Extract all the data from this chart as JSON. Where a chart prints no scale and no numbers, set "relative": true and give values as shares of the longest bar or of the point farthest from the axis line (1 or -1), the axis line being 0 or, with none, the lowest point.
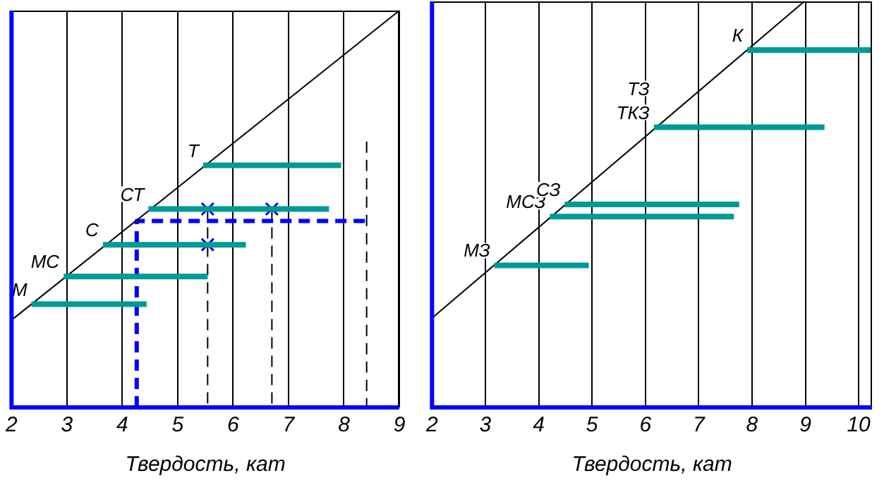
{
  "chart_data": [
    {
      "type": "line",
      "xlabel": "Твердость, кат",
      "xlim": [
        2,
        9
      ],
      "xticks": [
        2,
        3,
        4,
        5,
        6,
        7,
        8,
        9
      ],
      "relative": true,
      "grid": "x",
      "series": [
        {
          "name": "Т",
          "color": "#009999",
          "x": [
            5.46,
            7.95
          ],
          "values": [
            0.61,
            0.61
          ],
          "marker": "none",
          "line_style": "solid"
        },
        {
          "name": "СТ",
          "color": "#009999",
          "x": [
            4.47,
            7.73
          ],
          "values": [
            0.5,
            0.5
          ],
          "marker": "none",
          "line_style": "solid"
        },
        {
          "name": "С",
          "color": "#009999",
          "x": [
            3.65,
            6.23
          ],
          "values": [
            0.41,
            0.41
          ],
          "marker": "none",
          "line_style": "solid"
        },
        {
          "name": "МС",
          "color": "#009999",
          "x": [
            2.94,
            5.54
          ],
          "values": [
            0.33,
            0.33
          ],
          "marker": "none",
          "line_style": "solid"
        },
        {
          "name": "М",
          "color": "#009999",
          "x": [
            2.36,
            4.44
          ],
          "values": [
            0.26,
            0.26
          ],
          "marker": "none",
          "line_style": "solid"
        },
        {
          "color": "#000000",
          "x": [
            2,
            9
          ],
          "values": [
            0.22,
            1
          ],
          "marker": "none",
          "line_style": "solid"
        },
        {
          "color": "#0000ff",
          "x": [
            4.26,
            4.26,
            8.41
          ],
          "values": [
            0,
            0.47,
            0.47
          ],
          "marker": "none",
          "line_style": "dashed"
        },
        {
          "color": "#000000",
          "x": [
            5.54,
            5.54
          ],
          "values": [
            0.5,
            0
          ],
          "marker": "none",
          "line_style": "dashed"
        },
        {
          "color": "#000000",
          "x": [
            6.7,
            6.7
          ],
          "values": [
            0.5,
            0
          ],
          "marker": "none",
          "line_style": "dashed"
        },
        {
          "color": "#000000",
          "x": [
            8.41,
            8.41
          ],
          "values": [
            0.67,
            0
          ],
          "marker": "none",
          "line_style": "dashed"
        },
        {
          "type": "scatter",
          "color": "#0000ff",
          "x": [
            5.54,
            6.7,
            5.54
          ],
          "values": [
            0.5,
            0.5,
            0.41
          ],
          "marker": "cross"
        }
      ]
    },
    {
      "type": "line",
      "xlabel": "Твердость, кат",
      "xlim": [
        2,
        10.25
      ],
      "xticks": [
        2,
        3,
        4,
        5,
        6,
        7,
        8,
        9,
        10
      ],
      "relative": true,
      "grid": "x",
      "series": [
        {
          "name": "К",
          "color": "#009999",
          "x": [
            7.91,
            10.25
          ],
          "values": [
            0.88,
            0.88
          ],
          "marker": "none",
          "line_style": "solid"
        },
        {
          "name": "ТЗ\nТКЗ",
          "color": "#009999",
          "x": [
            6.16,
            9.36
          ],
          "values": [
            0.69,
            0.69
          ],
          "marker": "none",
          "line_style": "solid"
        },
        {
          "name": "СЗ",
          "color": "#009999",
          "x": [
            4.49,
            7.76
          ],
          "values": [
            0.5,
            0.5
          ],
          "marker": "none",
          "line_style": "solid"
        },
        {
          "name": "МСЗ",
          "color": "#009999",
          "x": [
            4.21,
            7.66
          ],
          "values": [
            0.47,
            0.47
          ],
          "marker": "none",
          "line_style": "solid"
        },
        {
          "name": "МЗ",
          "color": "#009999",
          "x": [
            3.17,
            4.94
          ],
          "values": [
            0.35,
            0.35
          ],
          "marker": "none",
          "line_style": "solid"
        },
        {
          "color": "#000000",
          "x": [
            2,
            8.98
          ],
          "values": [
            0.22,
            1
          ],
          "marker": "none",
          "line_style": "solid"
        }
      ]
    }
  ]
}
